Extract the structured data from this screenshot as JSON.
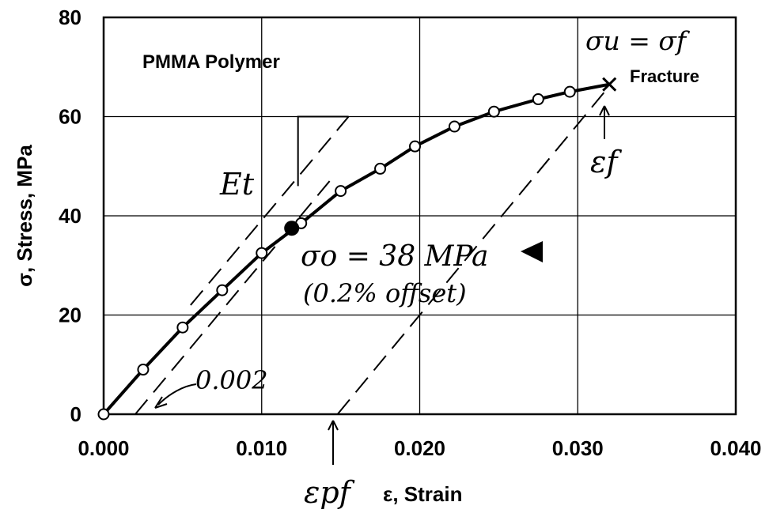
{
  "chart_data": {
    "type": "scatter",
    "title": "PMMA Polymer",
    "xlabel": "ε, Strain",
    "ylabel": "σ, Stress, MPa",
    "xlim": [
      0,
      0.04
    ],
    "ylim": [
      0,
      80
    ],
    "grid": true,
    "x_ticks": [
      "0.000",
      "0.010",
      "0.020",
      "0.030",
      "0.040"
    ],
    "y_ticks": [
      "0",
      "20",
      "40",
      "60",
      "80"
    ],
    "x_tick_values": [
      0,
      0.01,
      0.02,
      0.03,
      0.04
    ],
    "y_tick_values": [
      0,
      20,
      40,
      60,
      80
    ],
    "series": [
      {
        "x": [
          0.0,
          0.0025,
          0.005,
          0.0075,
          0.01,
          0.0125,
          0.015,
          0.0175,
          0.0197,
          0.0222,
          0.0247,
          0.0275,
          0.0295
        ],
        "y": [
          0,
          9,
          17.5,
          25,
          32.5,
          38.5,
          45,
          49.5,
          54,
          58,
          61,
          63.5,
          65
        ],
        "marker": "open-circle"
      }
    ],
    "curve": {
      "x": [
        0.0,
        0.0025,
        0.005,
        0.0075,
        0.01,
        0.0125,
        0.015,
        0.0175,
        0.0197,
        0.0222,
        0.0247,
        0.0275,
        0.0295,
        0.032
      ],
      "y": [
        0,
        9,
        17.5,
        25,
        32.5,
        38.5,
        45,
        49.5,
        54,
        58,
        61,
        63.5,
        65,
        66.5
      ]
    },
    "yield_point": {
      "x": 0.0119,
      "y": 37.5
    },
    "fracture_point": {
      "x": 0.032,
      "y": 66.5
    },
    "offset_line": {
      "x": [
        0.002,
        0.0143
      ],
      "y": [
        0,
        47
      ]
    },
    "modulus_line": {
      "x": [
        0.0055,
        0.0155
      ],
      "y": [
        22,
        60
      ]
    },
    "unload_line": {
      "x": [
        0.0148,
        0.0317
      ],
      "y": [
        0,
        65
      ]
    },
    "modulus_triangle": {
      "x": [
        0.0123,
        0.0123,
        0.0155
      ],
      "y": [
        46,
        60,
        60
      ]
    },
    "annotations": {
      "fracture_label": "Fracture",
      "su_sf": "σu = σf",
      "ef": "εf",
      "epf": "εpf",
      "et": "Et",
      "yield_strength": "σo = 38 MPa",
      "offset_note": "(0.2% offset)",
      "offset_value": "0.002"
    },
    "colors": {
      "line": "#000000",
      "grid": "#000000",
      "background": "#ffffff"
    }
  }
}
